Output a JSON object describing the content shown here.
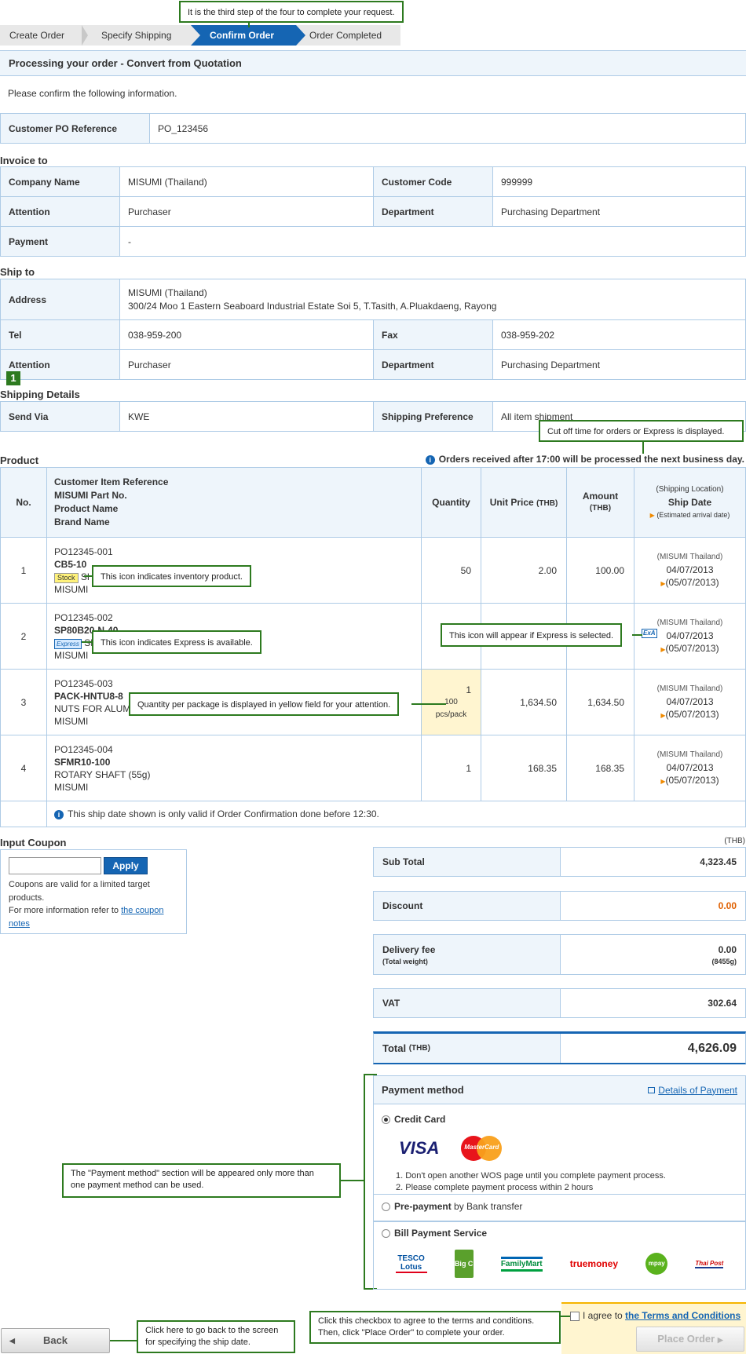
{
  "tips": {
    "step": "It is the third step of the four to complete your request.",
    "cutoff": "Cut off time for orders or Express is displayed.",
    "stock": "This icon indicates inventory product.",
    "express": "This icon indicates Express is available.",
    "express_sel": "This icon will appear if Express is selected.",
    "qty": "Quantity per package is displayed in yellow field for your attention.",
    "payment_l1": "The \"Payment method\" section will be appeared only more than",
    "payment_l2": "one payment method can be used.",
    "back_l1": "Click here to go back to the screen",
    "back_l2": "for specifying the ship date.",
    "agree_l1": "Click this checkbox to agree to the terms and conditions.",
    "agree_l2": "Then, click \"Place Order\" to complete your order."
  },
  "steps": [
    "Create Order",
    "Specify Shipping",
    "Confirm Order",
    "Order Completed"
  ],
  "page_title": "Processing your order - Convert from Quotation",
  "intro": "Please confirm the following information.",
  "po": {
    "label": "Customer PO Reference",
    "value": "PO_123456"
  },
  "invoice": {
    "title": "Invoice to",
    "company_label": "Company Name",
    "company": "MISUMI (Thailand)",
    "code_label": "Customer Code",
    "code": "999999",
    "attention_label": "Attention",
    "attention": "Purchaser",
    "dept_label": "Department",
    "dept": "Purchasing Department",
    "payment_label": "Payment",
    "payment": "-"
  },
  "shipto": {
    "title": "Ship to",
    "address_label": "Address",
    "address_l1": "MISUMI (Thailand)",
    "address_l2": "300/24 Moo 1 Eastern Seaboard Industrial Estate Soi 5, T.Tasith, A.Pluakdaeng, Rayong",
    "tel_label": "Tel",
    "tel": "038-959-200",
    "fax_label": "Fax",
    "fax": "038-959-202",
    "attention_label": "Attention",
    "attention": "Purchaser",
    "dept_label": "Department",
    "dept": "Purchasing Department"
  },
  "marker": "1",
  "shipping": {
    "title": "Shipping Details",
    "via_label": "Send Via",
    "via": "KWE",
    "pref_label": "Shipping Preference",
    "pref": "All item shipment"
  },
  "product": {
    "title": "Product",
    "notice": "Orders received after 17:00 will be processed the next business day.",
    "h_no": "No.",
    "h_ref1": "Customer Item Reference",
    "h_ref2": "MISUMI Part No.",
    "h_ref3": "Product Name",
    "h_ref4": "Brand Name",
    "h_qty": "Quantity",
    "h_price": "Unit Price",
    "h_price_unit": "(THB)",
    "h_amount": "Amount",
    "h_amount_unit": "(THB)",
    "h_ship1": "(Shipping Location)",
    "h_ship2": "Ship Date",
    "h_ship3": "(Estimated arrival date)",
    "stock_badge": "Stock",
    "express_badge": "Express",
    "exa_badge": "ExA",
    "rows": [
      {
        "no": "1",
        "ref": "PO12345-001",
        "part": "CB5-10",
        "name": "SHAFT",
        "brand": "MISUMI",
        "qty": "50",
        "price": "2.00",
        "amount": "100.00",
        "loc": "(MISUMI Thailand)",
        "date": "04/07/2013",
        "arrival": "(05/07/2013)"
      },
      {
        "no": "2",
        "ref": "PO12345-002",
        "part": "SP80B20-N-40",
        "name": "SPACER",
        "brand": "MISUMI",
        "qty": "",
        "price": "",
        "amount": "",
        "loc": "(MISUMI Thailand)",
        "date": "04/07/2013",
        "arrival": "(05/07/2013)"
      },
      {
        "no": "3",
        "ref": "PO12345-003",
        "part": "PACK-HNTU8-8",
        "name": "NUTS FOR ALUMINUM FRAMES",
        "brand": "MISUMI",
        "qty": "1",
        "pack": "100",
        "pack_unit": "pcs/pack",
        "price": "1,634.50",
        "amount": "1,634.50",
        "loc": "(MISUMI Thailand)",
        "date": "04/07/2013",
        "arrival": "(05/07/2013)"
      },
      {
        "no": "4",
        "ref": "PO12345-004",
        "part": "SFMR10-100",
        "name": "ROTARY SHAFT (55g)",
        "brand": "MISUMI",
        "qty": "1",
        "price": "168.35",
        "amount": "168.35",
        "loc": "(MISUMI Thailand)",
        "date": "04/07/2013",
        "arrival": "(05/07/2013)"
      }
    ],
    "footnote": "This ship date shown is only valid if Order Confirmation done before 12:30."
  },
  "coupon": {
    "title": "Input Coupon",
    "apply": "Apply",
    "note1": "Coupons are valid for a limited target",
    "note2": "products.",
    "note3": "For more information refer to",
    "link1": "the coupon",
    "link2": "notes"
  },
  "summary": {
    "currency": "(THB)",
    "subtotal_label": "Sub Total",
    "subtotal": "4,323.45",
    "discount_label": "Discount",
    "discount": "0.00",
    "delivery_label": "Delivery fee",
    "delivery_sub": "(Total weight)",
    "delivery": "0.00",
    "weight": "(8455g)",
    "vat_label": "VAT",
    "vat": "302.64",
    "total_label": "Total",
    "total_unit": "(THB)",
    "total": "4,626.09"
  },
  "payment": {
    "title": "Payment method",
    "details_link": "Details of Payment",
    "credit": "Credit Card",
    "visa": "VISA",
    "mastercard": "MasterCard",
    "note1": "1. Don't open another WOS page until you complete payment process.",
    "note2": "2. Please complete payment process within 2 hours",
    "prepay_bold": "Pre-payment",
    "prepay_rest": "by Bank transfer",
    "bill": "Bill Payment Service",
    "logos": [
      "TESCO Lotus",
      "Big C",
      "FamilyMart",
      "truemoney",
      "mpay",
      "Thai Post"
    ]
  },
  "agree": {
    "text": "I agree to",
    "link": "the Terms and Conditions"
  },
  "buttons": {
    "back": "Back",
    "place": "Place Order"
  },
  "colors": {
    "accent": "#1565b3",
    "header_bg": "#eef5fb",
    "border": "#aecbe6",
    "tip_border": "#2d7a1f",
    "discount": "#e06000"
  }
}
